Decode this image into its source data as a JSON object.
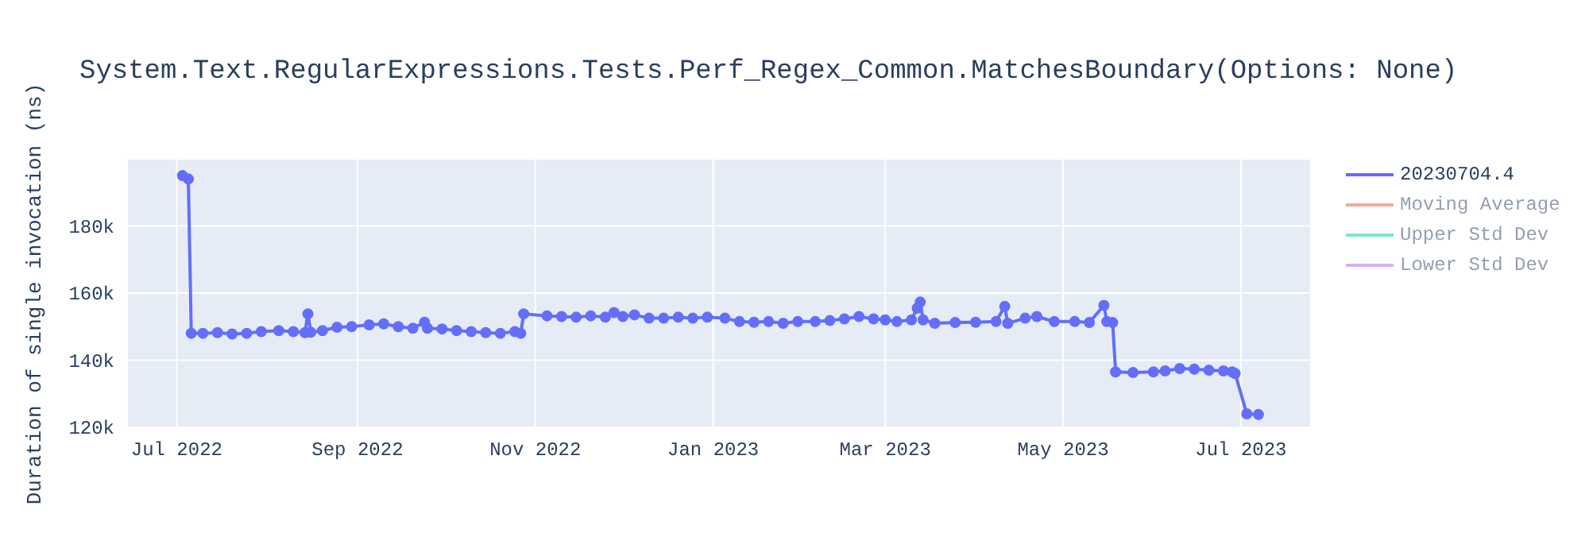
{
  "chart_data": {
    "type": "line",
    "title": "System.Text.RegularExpressions.Tests.Perf_Regex_Common.MatchesBoundary(Options: None)",
    "ylabel": "Duration of single invocation (ns)",
    "x": [
      "2022-07-03",
      "2022-07-05",
      "2022-07-06",
      "2022-07-10",
      "2022-07-15",
      "2022-07-20",
      "2022-07-25",
      "2022-07-30",
      "2022-08-05",
      "2022-08-10",
      "2022-08-14",
      "2022-08-15",
      "2022-08-16",
      "2022-08-20",
      "2022-08-25",
      "2022-08-30",
      "2022-09-05",
      "2022-09-10",
      "2022-09-15",
      "2022-09-20",
      "2022-09-24",
      "2022-09-25",
      "2022-09-30",
      "2022-10-05",
      "2022-10-10",
      "2022-10-15",
      "2022-10-20",
      "2022-10-25",
      "2022-10-27",
      "2022-10-28",
      "2022-11-05",
      "2022-11-10",
      "2022-11-15",
      "2022-11-20",
      "2022-11-25",
      "2022-11-28",
      "2022-12-01",
      "2022-12-05",
      "2022-12-10",
      "2022-12-15",
      "2022-12-20",
      "2022-12-25",
      "2022-12-30",
      "2023-01-05",
      "2023-01-10",
      "2023-01-15",
      "2023-01-20",
      "2023-01-25",
      "2023-01-30",
      "2023-02-05",
      "2023-02-10",
      "2023-02-15",
      "2023-02-20",
      "2023-02-25",
      "2023-03-01",
      "2023-03-05",
      "2023-03-10",
      "2023-03-12",
      "2023-03-13",
      "2023-03-14",
      "2023-03-18",
      "2023-03-25",
      "2023-04-01",
      "2023-04-08",
      "2023-04-11",
      "2023-04-12",
      "2023-04-18",
      "2023-04-22",
      "2023-04-28",
      "2023-05-05",
      "2023-05-10",
      "2023-05-15",
      "2023-05-16",
      "2023-05-18",
      "2023-05-19",
      "2023-05-25",
      "2023-06-01",
      "2023-06-05",
      "2023-06-10",
      "2023-06-15",
      "2023-06-20",
      "2023-06-25",
      "2023-06-28",
      "2023-06-29",
      "2023-07-03",
      "2023-07-07"
    ],
    "series": [
      {
        "name": "20230704.4",
        "color": "#636efa",
        "values": [
          195000,
          194000,
          148000,
          148000,
          148200,
          147800,
          148000,
          148500,
          148800,
          148500,
          148200,
          153800,
          148300,
          148800,
          149800,
          150000,
          150500,
          150800,
          150000,
          149500,
          151300,
          149500,
          149300,
          148800,
          148500,
          148200,
          148000,
          148500,
          148000,
          153800,
          153200,
          153000,
          152800,
          153200,
          152800,
          154200,
          153000,
          153500,
          152500,
          152500,
          152800,
          152500,
          152800,
          152500,
          151500,
          151300,
          151500,
          151000,
          151500,
          151500,
          151800,
          152300,
          153000,
          152300,
          152000,
          151500,
          152000,
          155500,
          157300,
          152000,
          151000,
          151200,
          151300,
          151500,
          156000,
          151000,
          152500,
          153000,
          151500,
          151500,
          151200,
          156300,
          151500,
          151200,
          136500,
          136300,
          136500,
          136800,
          137500,
          137300,
          137000,
          136800,
          136500,
          136000,
          124000,
          123800
        ]
      },
      {
        "name": "Moving Average",
        "color": "#ef553b",
        "values": [
          null,
          null,
          null,
          null,
          null,
          null,
          null,
          null,
          null,
          null,
          null,
          null,
          null,
          null,
          null,
          null,
          null,
          null,
          null,
          null,
          null,
          null,
          null,
          null,
          null,
          null,
          null,
          null,
          null,
          null,
          null,
          null,
          null,
          null,
          null,
          null,
          null,
          null,
          null,
          null,
          null,
          null,
          null,
          null,
          null,
          null,
          null,
          null,
          null,
          null,
          null,
          null,
          null,
          null,
          null,
          null,
          null,
          null,
          null,
          null,
          null,
          null,
          null,
          null,
          null,
          null,
          null,
          null,
          null,
          null,
          null,
          null,
          null,
          null,
          null,
          null,
          null,
          null,
          null,
          null,
          null,
          null,
          null,
          null,
          null,
          null
        ]
      },
      {
        "name": "Upper Std Dev",
        "color": "#00cc96",
        "values": [
          null,
          null,
          null,
          null,
          null,
          null,
          null,
          null,
          null,
          null,
          null,
          null,
          null,
          null,
          null,
          null,
          null,
          null,
          null,
          null,
          null,
          null,
          null,
          null,
          null,
          null,
          null,
          null,
          null,
          null,
          null,
          null,
          null,
          null,
          null,
          null,
          null,
          null,
          null,
          null,
          null,
          null,
          null,
          null,
          null,
          null,
          null,
          null,
          null,
          null,
          null,
          null,
          null,
          null,
          null,
          null,
          null,
          null,
          null,
          null,
          null,
          null,
          null,
          null,
          null,
          null,
          null,
          null,
          null,
          null,
          null,
          null,
          null,
          null,
          null,
          null,
          null,
          null,
          null,
          null,
          null,
          null,
          null,
          null,
          null,
          null
        ]
      },
      {
        "name": "Lower Std Dev",
        "color": "#ab63fa",
        "values": [
          null,
          null,
          null,
          null,
          null,
          null,
          null,
          null,
          null,
          null,
          null,
          null,
          null,
          null,
          null,
          null,
          null,
          null,
          null,
          null,
          null,
          null,
          null,
          null,
          null,
          null,
          null,
          null,
          null,
          null,
          null,
          null,
          null,
          null,
          null,
          null,
          null,
          null,
          null,
          null,
          null,
          null,
          null,
          null,
          null,
          null,
          null,
          null,
          null,
          null,
          null,
          null,
          null,
          null,
          null,
          null,
          null,
          null,
          null,
          null,
          null,
          null,
          null,
          null,
          null,
          null,
          null,
          null,
          null,
          null,
          null,
          null,
          null,
          null,
          null,
          null,
          null,
          null,
          null,
          null,
          null,
          null,
          null,
          null,
          null,
          null
        ]
      }
    ],
    "xlim": [
      "2022-06-14",
      "2023-07-25"
    ],
    "xticks": [
      {
        "value": "2022-07-01",
        "label": "Jul 2022"
      },
      {
        "value": "2022-09-01",
        "label": "Sep 2022"
      },
      {
        "value": "2022-11-01",
        "label": "Nov 2022"
      },
      {
        "value": "2023-01-01",
        "label": "Jan 2023"
      },
      {
        "value": "2023-03-01",
        "label": "Mar 2023"
      },
      {
        "value": "2023-05-01",
        "label": "May 2023"
      },
      {
        "value": "2023-07-01",
        "label": "Jul 2023"
      }
    ],
    "ylim": [
      119500,
      200000
    ],
    "yticks": [
      {
        "value": 120000,
        "label": "120k"
      },
      {
        "value": 140000,
        "label": "140k"
      },
      {
        "value": 160000,
        "label": "160k"
      },
      {
        "value": 180000,
        "label": "180k"
      }
    ],
    "grid": true,
    "legend": "top right",
    "marker": "circle",
    "line_style": "solid"
  }
}
